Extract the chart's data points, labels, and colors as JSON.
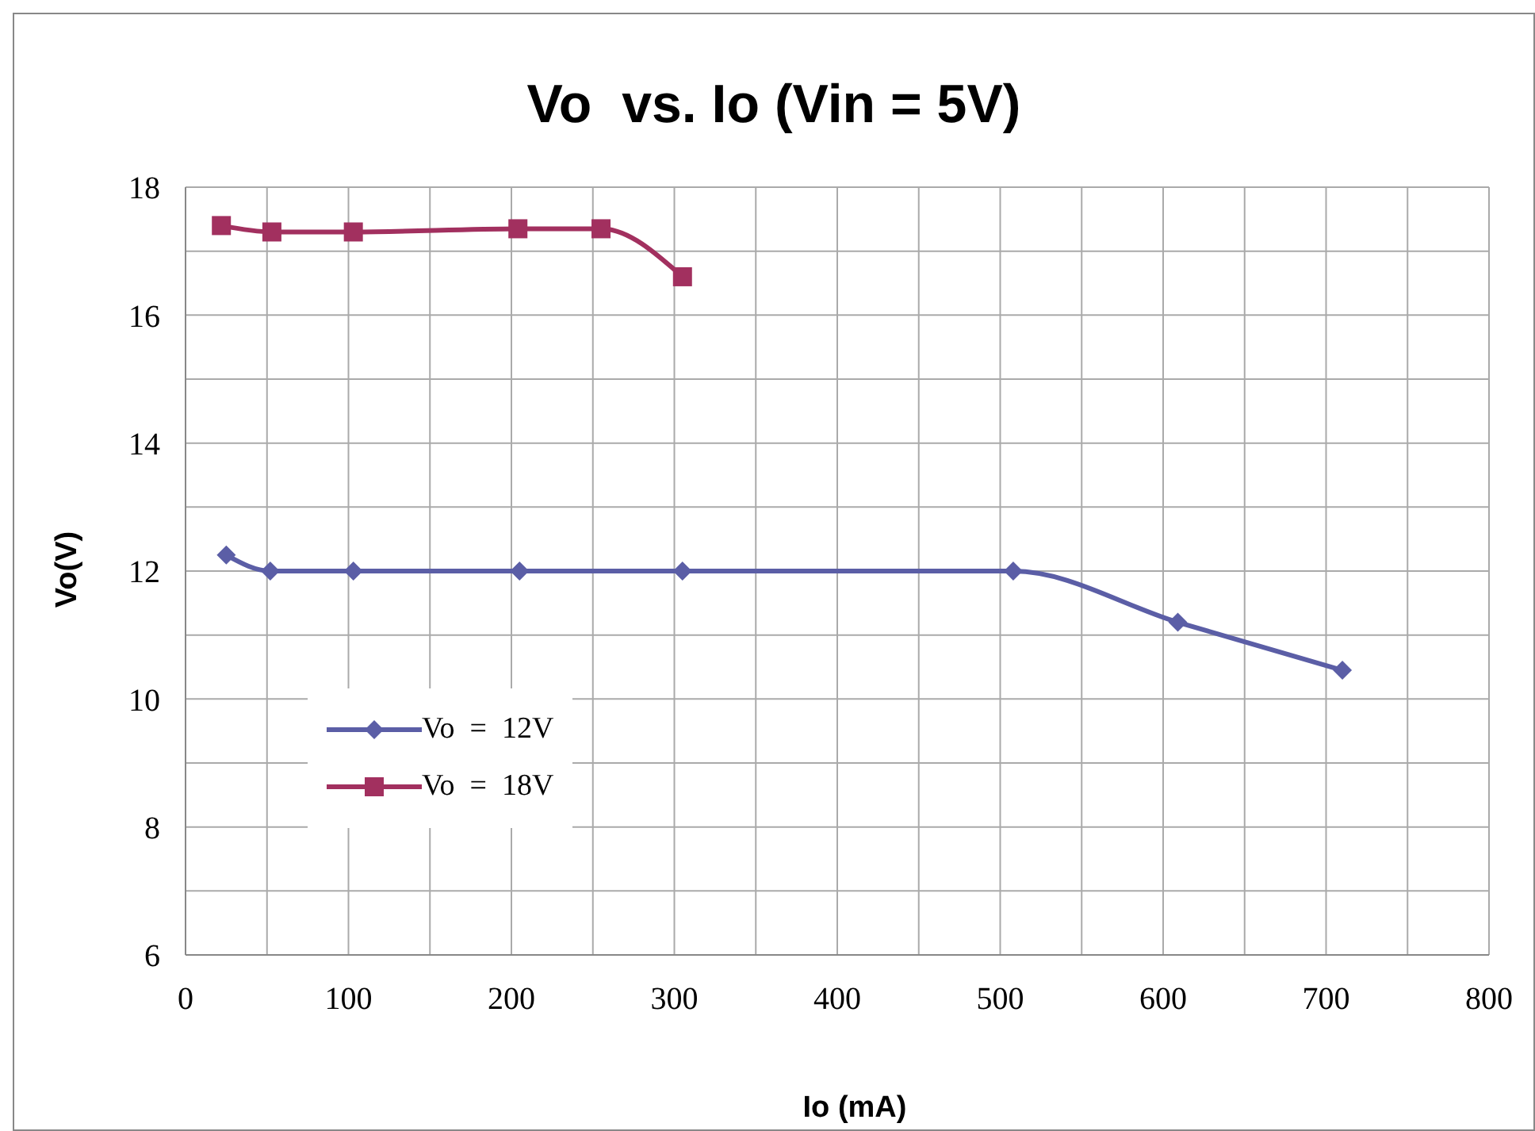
{
  "chart_data": {
    "type": "line",
    "title": "Vo  vs. Io (Vin = 5V)",
    "xlabel": "Io (mA)",
    "ylabel": "Vo(V)",
    "series": [
      {
        "name": "Vo = 12V",
        "color": "#5b5ea6",
        "marker": "diamond",
        "x": [
          25,
          52,
          103,
          205,
          305,
          508,
          609,
          710
        ],
        "values": [
          12.25,
          12.0,
          12.0,
          12.0,
          12.0,
          12.0,
          11.2,
          10.45
        ]
      },
      {
        "name": "Vo = 18V",
        "color": "#a2305f",
        "marker": "square",
        "x": [
          22,
          53,
          103,
          204,
          255,
          305
        ],
        "values": [
          17.4,
          17.3,
          17.3,
          17.35,
          17.35,
          16.6
        ]
      }
    ],
    "xlim": [
      0,
      800
    ],
    "xticks": [
      0,
      {
        "value": 50,
        "label": null
      },
      100,
      {
        "value": 150,
        "label": null
      },
      200,
      {
        "value": 250,
        "label": null
      },
      300,
      {
        "value": 350,
        "label": null
      },
      400,
      {
        "value": 450,
        "label": null
      },
      500,
      {
        "value": 550,
        "label": null
      },
      600,
      {
        "value": 650,
        "label": null
      },
      700,
      {
        "value": 750,
        "label": null
      },
      800
    ],
    "ylim": [
      6,
      18
    ],
    "yticks": [
      6,
      {
        "value": 7,
        "label": null
      },
      8,
      {
        "value": 9,
        "label": null
      },
      10,
      {
        "value": 11,
        "label": null
      },
      12,
      {
        "value": 13,
        "label": null
      },
      14,
      {
        "value": 15,
        "label": null
      },
      16,
      {
        "value": 17,
        "label": null
      },
      18
    ],
    "grid": true,
    "legend": "bottom left",
    "line_style": "solid"
  }
}
